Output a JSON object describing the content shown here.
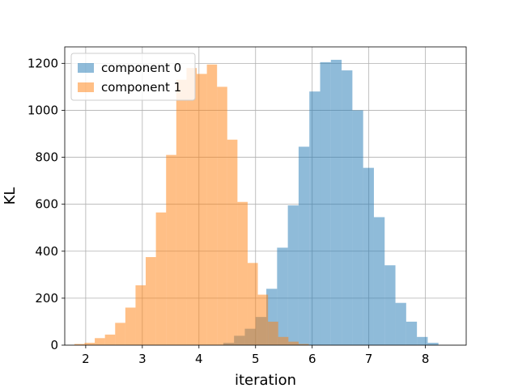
{
  "chart_data": {
    "type": "bar",
    "subtype": "histogram",
    "title": "",
    "xlabel": "iteration",
    "ylabel": "KL",
    "xlim": [
      1.63,
      8.72
    ],
    "ylim": [
      0,
      1270
    ],
    "xticks": [
      2,
      3,
      4,
      5,
      6,
      7,
      8
    ],
    "yticks": [
      0,
      200,
      400,
      600,
      800,
      1000,
      1200
    ],
    "grid": true,
    "legend_position": "top-left",
    "series": [
      {
        "name": "component 0",
        "color": "#1f77b4",
        "opacity": 0.5,
        "bin_edges": [
          4.43,
          4.62,
          4.81,
          5.0,
          5.19,
          5.38,
          5.57,
          5.76,
          5.95,
          6.14,
          6.33,
          6.52,
          6.71,
          6.9,
          7.09,
          7.28,
          7.47,
          7.66,
          7.85,
          8.04,
          8.23
        ],
        "counts": [
          10,
          40,
          70,
          120,
          240,
          415,
          595,
          845,
          1080,
          1205,
          1215,
          1170,
          1000,
          755,
          545,
          340,
          180,
          100,
          35,
          10
        ]
      },
      {
        "name": "component 1",
        "color": "#ff7f0e",
        "opacity": 0.5,
        "bin_edges": [
          1.8,
          1.98,
          2.16,
          2.34,
          2.52,
          2.7,
          2.88,
          3.06,
          3.24,
          3.42,
          3.6,
          3.78,
          3.96,
          4.14,
          4.32,
          4.5,
          4.68,
          4.86,
          5.04,
          5.22,
          5.4,
          5.58,
          5.76,
          5.94
        ],
        "counts": [
          5,
          10,
          30,
          45,
          95,
          160,
          255,
          375,
          565,
          810,
          1130,
          1180,
          1155,
          1195,
          1100,
          875,
          610,
          350,
          215,
          100,
          35,
          15,
          5
        ]
      }
    ]
  }
}
